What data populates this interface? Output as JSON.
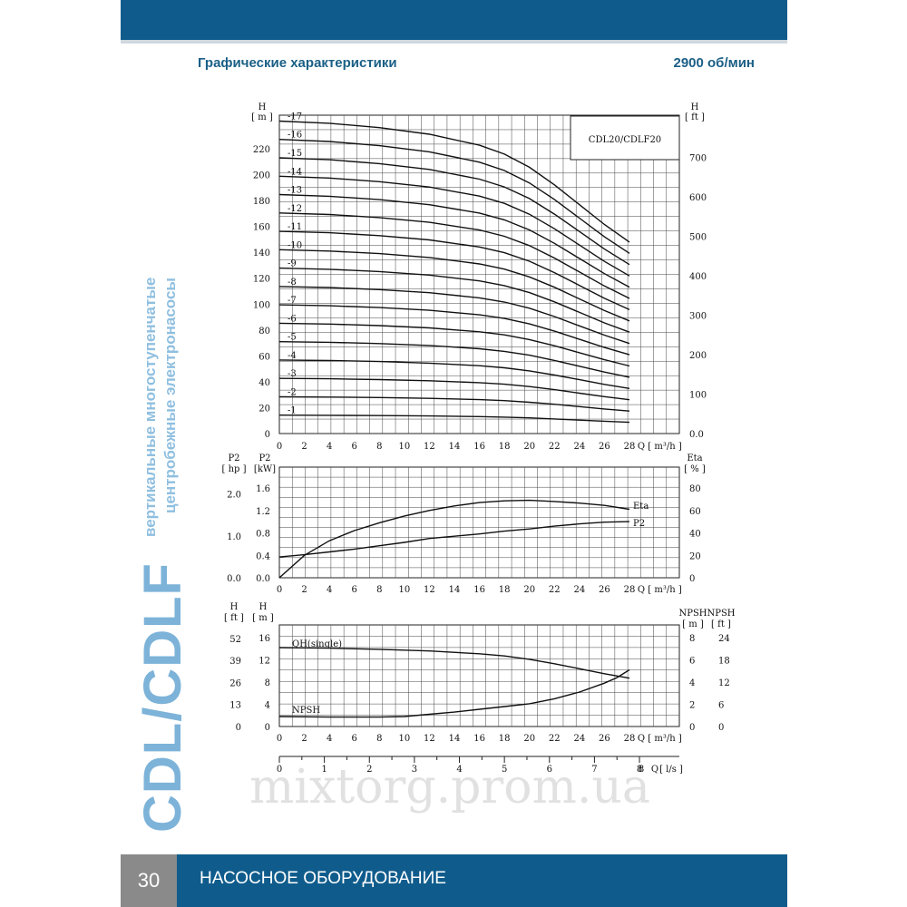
{
  "header": {
    "title": "Графические характеристики",
    "speed": "2900 об/мин"
  },
  "side": {
    "brand": "CDL/CDLF",
    "line1": "вертикальные многоступенчатые",
    "line2": "центробежные электронасосы"
  },
  "footer": {
    "page": "30",
    "label": "НАСОСНОЕ ОБОРУДОВАНИЕ"
  },
  "watermark": "mixtorg.prom.ua",
  "colors": {
    "brand_blue": "#0f5c8c",
    "accent_light_blue": "#7db3d8",
    "page_grey": "#8a8a8a"
  },
  "chart_data": [
    {
      "type": "line",
      "title": "CDL20/CDLF20",
      "ylabel_left": "H",
      "yunit_left": "[ m ]",
      "ylabel_right": "H",
      "yunit_right": "[ ft ]",
      "xlabel": "Q",
      "xunit": "[ m³/h ]",
      "xlim": [
        0,
        28
      ],
      "ylim": [
        0,
        240
      ],
      "x_ticks": [
        0,
        2,
        4,
        6,
        8,
        10,
        12,
        14,
        16,
        18,
        20,
        22,
        24,
        26,
        28
      ],
      "y_ticks_left": [
        0,
        20,
        40,
        60,
        80,
        100,
        120,
        140,
        160,
        180,
        200,
        220
      ],
      "y_ticks_right": [
        "0.0",
        "100",
        "200",
        "300",
        "400",
        "500",
        "600",
        "700"
      ],
      "grid": true,
      "stage_labels": [
        "-1",
        "-2",
        "-3",
        "-4",
        "-5",
        "-6",
        "-7",
        "-8",
        "-9",
        "-10",
        "-11",
        "-12",
        "-13",
        "-14",
        "-15",
        "-16",
        "-17"
      ],
      "series": [
        {
          "stage": 1,
          "shutoff_head": 14.2,
          "head_at_28": 8.7
        },
        {
          "stage": 2,
          "shutoff_head": 28.4,
          "head_at_28": 17.4
        },
        {
          "stage": 3,
          "shutoff_head": 42.6,
          "head_at_28": 26.1
        },
        {
          "stage": 4,
          "shutoff_head": 56.8,
          "head_at_28": 34.8
        },
        {
          "stage": 5,
          "shutoff_head": 71,
          "head_at_28": 43.5
        },
        {
          "stage": 6,
          "shutoff_head": 85.2,
          "head_at_28": 52.2
        },
        {
          "stage": 7,
          "shutoff_head": 99.4,
          "head_at_28": 60.9
        },
        {
          "stage": 8,
          "shutoff_head": 113.6,
          "head_at_28": 69.6
        },
        {
          "stage": 9,
          "shutoff_head": 127.8,
          "head_at_28": 78.3
        },
        {
          "stage": 10,
          "shutoff_head": 142,
          "head_at_28": 87
        },
        {
          "stage": 11,
          "shutoff_head": 156.2,
          "head_at_28": 95.7
        },
        {
          "stage": 12,
          "shutoff_head": 170.4,
          "head_at_28": 104.4
        },
        {
          "stage": 13,
          "shutoff_head": 184.6,
          "head_at_28": 113.1
        },
        {
          "stage": 14,
          "shutoff_head": 198.8,
          "head_at_28": 121.8
        },
        {
          "stage": 15,
          "shutoff_head": 213,
          "head_at_28": 130.5
        },
        {
          "stage": 16,
          "shutoff_head": 227.2,
          "head_at_28": 139.2
        },
        {
          "stage": 17,
          "shutoff_head": 241.4,
          "head_at_28": 147.9
        }
      ],
      "single_stage_curve": {
        "x": [
          0,
          4,
          8,
          12,
          16,
          18,
          20,
          22,
          24,
          26,
          28
        ],
        "y": [
          14.2,
          14.1,
          13.9,
          13.6,
          13.1,
          12.7,
          12.1,
          11.3,
          10.4,
          9.5,
          8.7
        ]
      }
    },
    {
      "type": "line",
      "ylabel_left_outer": "P2",
      "yunit_left_outer": "[ hp ]",
      "ylabel_left": "P2",
      "yunit_left": "[kW]",
      "ylabel_right": "Eta",
      "yunit_right": "[ % ]",
      "xlabel": "Q",
      "xunit": "[ m³/h ]",
      "xlim": [
        0,
        28
      ],
      "ylim": [
        0,
        1.8
      ],
      "x_ticks": [
        0,
        2,
        4,
        6,
        8,
        10,
        12,
        14,
        16,
        18,
        20,
        22,
        24,
        26,
        28
      ],
      "y_ticks_left": [
        "0.0",
        "0.4",
        "0.8",
        "1.2",
        "1.6"
      ],
      "y_ticks_hp": [
        "0.0",
        "1.0",
        "2.0"
      ],
      "y_ticks_right": [
        "0",
        "20",
        "40",
        "60",
        "80"
      ],
      "grid": true,
      "series": [
        {
          "name": "Eta",
          "x": [
            0,
            2,
            4,
            6,
            8,
            10,
            12,
            14,
            16,
            18,
            20,
            22,
            24,
            26,
            28
          ],
          "y": [
            0,
            20,
            33,
            42,
            49,
            55,
            60,
            64,
            67,
            68.5,
            69,
            68,
            66.5,
            64.5,
            61
          ]
        },
        {
          "name": "P2",
          "x": [
            0,
            2,
            4,
            6,
            8,
            10,
            12,
            14,
            16,
            18,
            20,
            22,
            24,
            26,
            28
          ],
          "y": [
            0.37,
            0.41,
            0.46,
            0.51,
            0.57,
            0.63,
            0.7,
            0.74,
            0.78,
            0.83,
            0.87,
            0.92,
            0.96,
            0.99,
            1.0
          ]
        }
      ]
    },
    {
      "type": "line",
      "ylabel_left_outer": "H",
      "yunit_left_outer": "[ ft ]",
      "ylabel_left": "H",
      "yunit_left": "[ m ]",
      "ylabel_right": "NPSH",
      "yunit_right": "[ m ]",
      "ylabel_right_outer": "NPSH",
      "yunit_right_outer": "[ ft ]",
      "xlabel": "Q",
      "xunit": "[ m³/h ]",
      "xlim": [
        0,
        28
      ],
      "ylim": [
        0,
        16
      ],
      "x_ticks": [
        0,
        2,
        4,
        6,
        8,
        10,
        12,
        14,
        16,
        18,
        20,
        22,
        24,
        26,
        28
      ],
      "y_ticks_left": [
        "0",
        "4",
        "8",
        "12",
        "16"
      ],
      "y_ticks_ft": [
        "0",
        "13",
        "26",
        "39",
        "52"
      ],
      "y_ticks_right": [
        "0",
        "2",
        "4",
        "6",
        "8"
      ],
      "y_ticks_right_ft": [
        "0",
        "6",
        "12",
        "18",
        "24"
      ],
      "grid": true,
      "series": [
        {
          "name": "QH(single)",
          "x": [
            0,
            4,
            8,
            12,
            16,
            18,
            20,
            22,
            24,
            26,
            28
          ],
          "y": [
            14.2,
            14.1,
            13.9,
            13.6,
            13.1,
            12.7,
            12.1,
            11.3,
            10.4,
            9.5,
            8.7
          ]
        },
        {
          "name": "NPSH",
          "x": [
            0,
            4,
            8,
            10,
            12,
            14,
            16,
            18,
            20,
            22,
            24,
            26,
            27,
            28
          ],
          "y": [
            0.9,
            0.85,
            0.85,
            0.9,
            1.1,
            1.3,
            1.55,
            1.8,
            2.05,
            2.5,
            3.1,
            3.9,
            4.4,
            5.1
          ]
        }
      ]
    },
    {
      "type": "axis",
      "xlabel": "Q",
      "xunit": "[ l/s ]",
      "x_ticks": [
        "0",
        "1",
        "2",
        "3",
        "4",
        "5",
        "6",
        "7",
        "8"
      ]
    }
  ]
}
